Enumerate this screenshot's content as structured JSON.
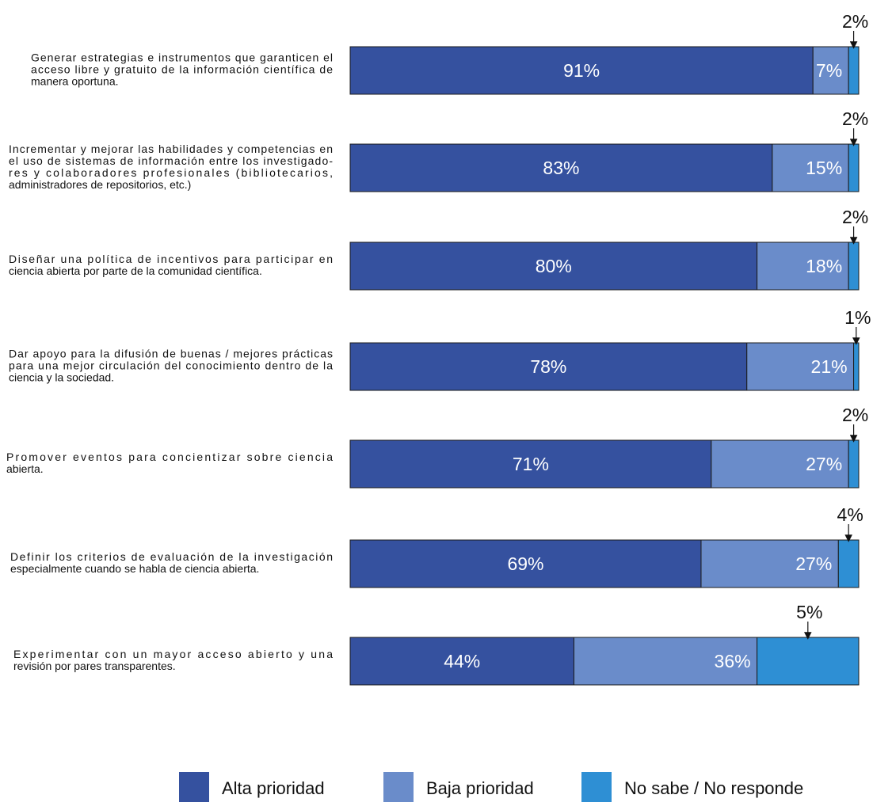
{
  "chart_data": {
    "type": "bar",
    "orientation": "horizontal",
    "stacked": true,
    "unit": "%",
    "title": "",
    "xlabel": "",
    "ylabel": "",
    "xlim": [
      0,
      100
    ],
    "grid": false,
    "legend_position": "bottom",
    "categories": [
      [
        "Generar estrategias e instrumentos que garanticen el",
        "acceso libre y gratuito de la información científica de",
        "manera oportuna."
      ],
      [
        "Incrementar y mejorar las habilidades y competencias en",
        "el uso de sistemas de información entre los investigado-",
        "res y colaboradores profesionales (bibliotecarios,",
        "administradores de repositorios, etc.)"
      ],
      [
        "Diseñar una política de incentivos para participar en",
        "ciencia abierta por parte de la comunidad científica."
      ],
      [
        "Dar apoyo para la difusión de buenas / mejores prácticas",
        "para una mejor circulación del conocimiento dentro de la",
        "ciencia y la sociedad."
      ],
      [
        "Promover eventos para concientizar sobre ciencia",
        "abierta."
      ],
      [
        "Definir los criterios de evaluación de la investigación",
        "especialmente cuando se habla de ciencia abierta."
      ],
      [
        "Experimentar con un mayor acceso abierto y una",
        "revisión por pares transparentes."
      ]
    ],
    "series": [
      {
        "name": "Alta prioridad",
        "color": "#35519f",
        "values": [
          91,
          83,
          80,
          78,
          71,
          69,
          44
        ]
      },
      {
        "name": "Baja prioridad",
        "color": "#6a8cca",
        "values": [
          7,
          15,
          18,
          21,
          27,
          27,
          36
        ]
      },
      {
        "name": "No sabe / No responde",
        "color": "#2e8fd4",
        "values": [
          2,
          2,
          2,
          1,
          2,
          4,
          5
        ]
      }
    ]
  }
}
